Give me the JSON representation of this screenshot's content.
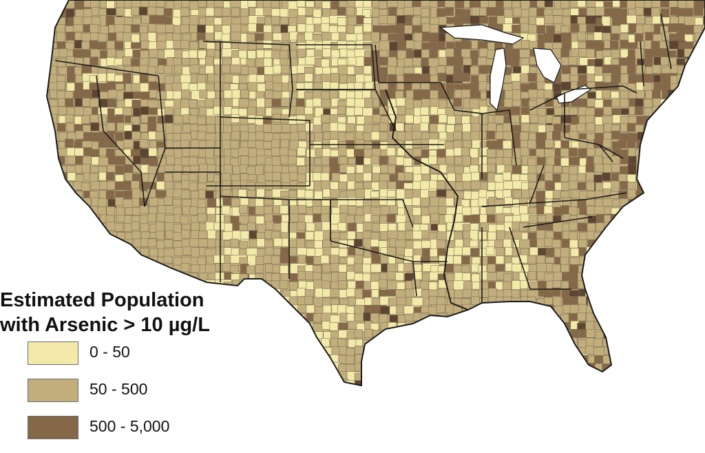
{
  "map": {
    "legend": {
      "title_line1": "Estimated Population",
      "title_line2": "with Arsenic > 10 µg/L",
      "classes": [
        {
          "label": "0 - 50",
          "color": "#f3eaa9"
        },
        {
          "label": "50 - 500",
          "color": "#c2ae7c"
        },
        {
          "label": "500 - 5,000",
          "color": "#856848"
        }
      ]
    },
    "colors": {
      "low": "#f3eaa9",
      "mid": "#c2ae7c",
      "high": "#856848",
      "veryhigh": "#5d4531",
      "county_line": "#7d7258",
      "state_line": "#1a1a1a"
    }
  }
}
